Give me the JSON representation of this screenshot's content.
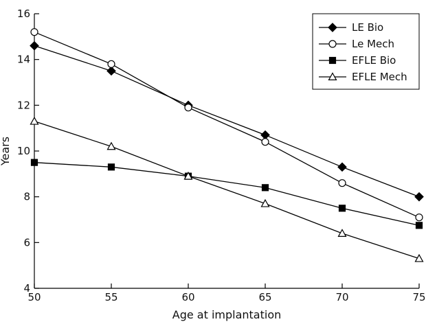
{
  "chart_data": {
    "type": "line",
    "title": "",
    "xlabel": "Age at implantation",
    "ylabel": "Years",
    "xlim": [
      50,
      75
    ],
    "ylim": [
      4,
      16
    ],
    "x_ticks": [
      50,
      55,
      60,
      65,
      70,
      75
    ],
    "y_ticks": [
      4,
      6,
      8,
      10,
      12,
      14,
      16
    ],
    "grid": false,
    "legend_position": "top-right",
    "x": [
      50,
      55,
      60,
      65,
      70,
      75
    ],
    "series": [
      {
        "name": "LE Bio",
        "marker": "filled-diamond",
        "values": [
          14.6,
          13.5,
          12.0,
          10.7,
          9.3,
          8.0
        ]
      },
      {
        "name": "Le Mech",
        "marker": "open-circle",
        "values": [
          15.2,
          13.8,
          11.9,
          10.4,
          8.6,
          7.1
        ]
      },
      {
        "name": "EFLE Bio",
        "marker": "filled-square",
        "values": [
          9.5,
          9.3,
          8.9,
          8.4,
          7.5,
          6.75
        ]
      },
      {
        "name": "EFLE Mech",
        "marker": "open-triangle",
        "values": [
          11.3,
          10.2,
          8.9,
          7.7,
          6.4,
          5.3
        ]
      }
    ]
  }
}
